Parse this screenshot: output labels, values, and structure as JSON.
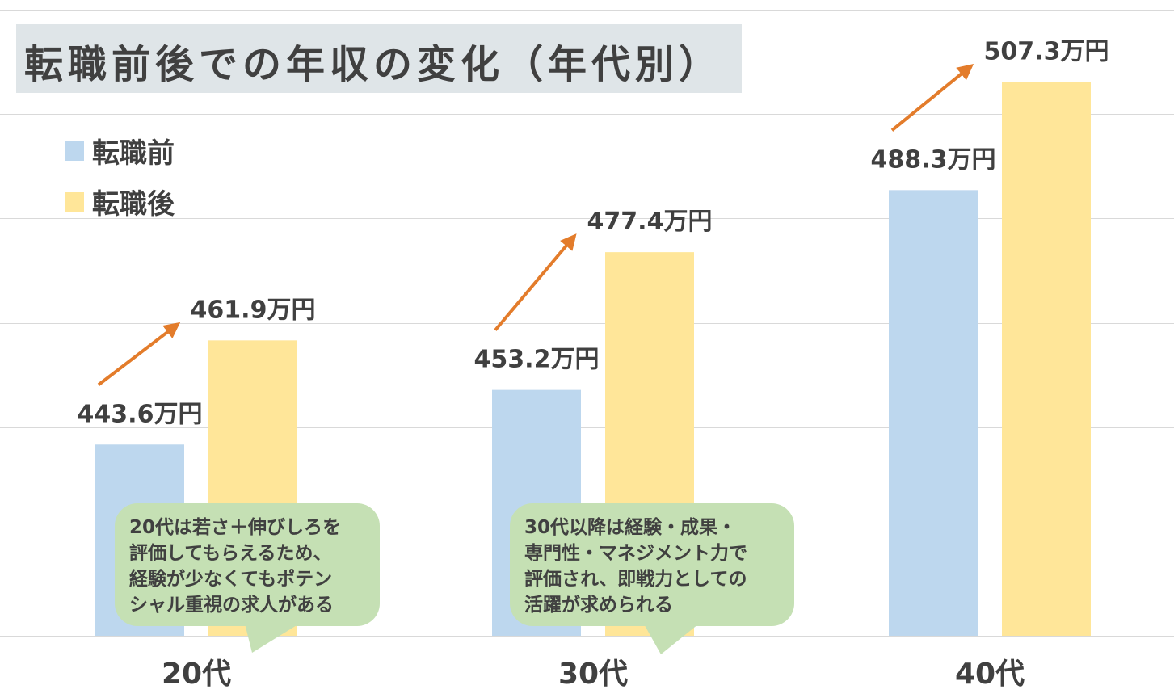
{
  "title": "転職前後での年収の変化（年代別）",
  "colors": {
    "before": "#bdd7ee",
    "after": "#ffe699",
    "arrow": "#e37c2b",
    "grid": "#d9d9d9",
    "title_bg": "#dfe5e8",
    "bubble": "#c5e0b4",
    "text": "#404040"
  },
  "legend": {
    "before_label": "転職前",
    "after_label": "転職後"
  },
  "chart_data": {
    "type": "bar",
    "categories": [
      "20代",
      "30代",
      "40代"
    ],
    "series": [
      {
        "name": "転職前",
        "values": [
          443.6,
          453.2,
          488.3
        ],
        "labels": [
          "443.6万円",
          "453.2万円",
          "488.3万円"
        ]
      },
      {
        "name": "転職後",
        "values": [
          461.9,
          477.4,
          507.3
        ],
        "labels": [
          "461.9万円",
          "477.4万円",
          "507.3万円"
        ]
      }
    ],
    "unit": "万円",
    "title": "転職前後での年収の変化（年代別）",
    "xlabel": "",
    "ylabel": "",
    "ylim": [
      410,
      520
    ],
    "grid": true,
    "legend_position": "top-left"
  },
  "annotations": [
    {
      "category": "20代",
      "lines": [
        "20代は若さ＋伸びしろを",
        "評価してもらえるため、",
        "経験が少なくてもポテン",
        "シャル重視の求人がある"
      ]
    },
    {
      "category": "30代",
      "lines": [
        "30代以降は経験・成果・",
        "専門性・マネジメント力で",
        "評価され、即戦力としての",
        "活躍が求められる"
      ]
    }
  ]
}
